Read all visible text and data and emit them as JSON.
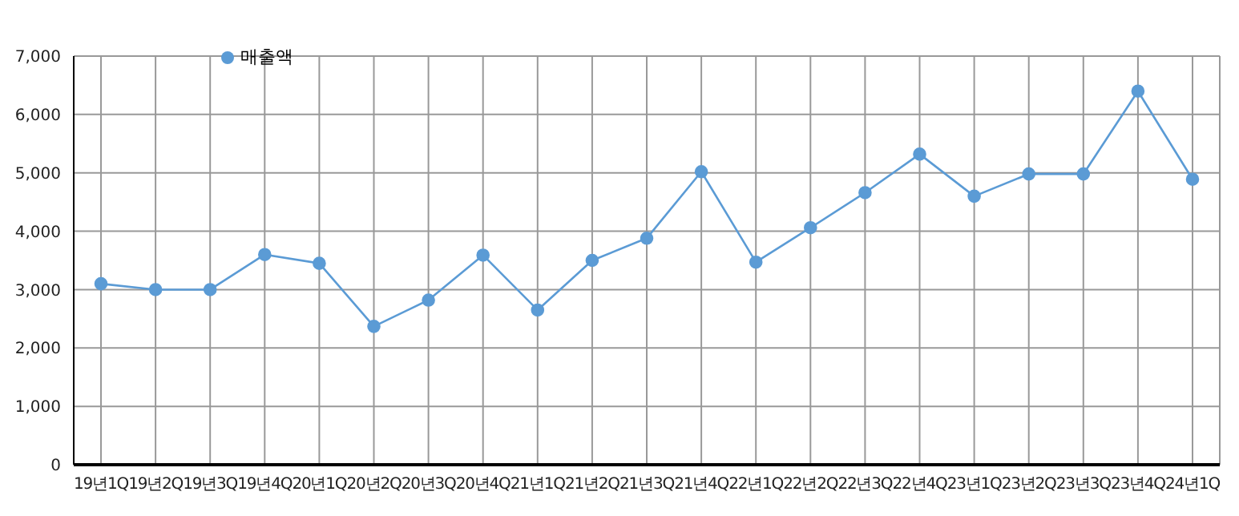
{
  "chart_data": {
    "type": "line",
    "categories": [
      "19년1Q",
      "19년2Q",
      "19년3Q",
      "19년4Q",
      "20년1Q",
      "20년2Q",
      "20년3Q",
      "20년4Q",
      "21년1Q",
      "21년2Q",
      "21년3Q",
      "21년4Q",
      "22년1Q",
      "22년2Q",
      "22년3Q",
      "22년4Q",
      "23년1Q",
      "23년2Q",
      "23년3Q",
      "23년4Q",
      "24년1Q"
    ],
    "series": [
      {
        "name": "매출액",
        "color": "#5b9bd5",
        "values": [
          3100,
          3000,
          3000,
          3600,
          3450,
          2370,
          2820,
          3590,
          2650,
          3500,
          3880,
          5020,
          3470,
          4060,
          4660,
          5320,
          4600,
          4980,
          4980,
          6400,
          4890
        ]
      }
    ],
    "ylim": [
      0,
      7000
    ],
    "yticks": [
      {
        "value": 0,
        "label": "0"
      },
      {
        "value": 1000,
        "label": "1,000"
      },
      {
        "value": 2000,
        "label": "2,000"
      },
      {
        "value": 3000,
        "label": "3,000"
      },
      {
        "value": 4000,
        "label": "4,000"
      },
      {
        "value": 5000,
        "label": "5,000"
      },
      {
        "value": 6000,
        "label": "6,000"
      },
      {
        "value": 7000,
        "label": "7,000"
      }
    ],
    "grid": true,
    "legend": "top left",
    "marker": "circle",
    "line_style": "solid"
  }
}
